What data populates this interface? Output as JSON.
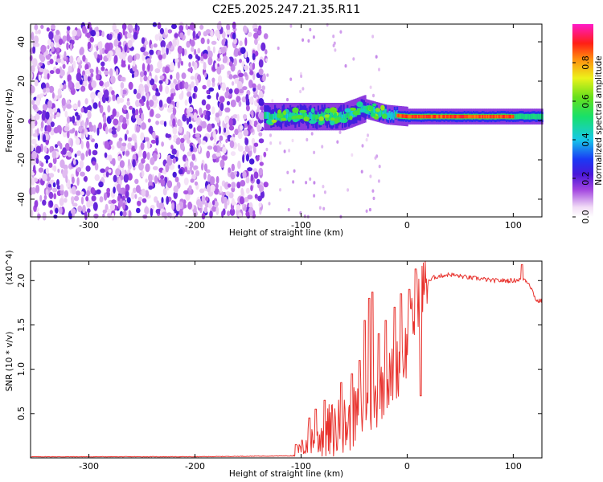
{
  "title": "C2E5.2025.247.21.35.R11",
  "chart_data": [
    {
      "type": "heatmap",
      "title": "C2E5.2025.247.21.35.R11",
      "xlabel": "Height of straight line (km)",
      "ylabel": "Frequency (Hz)",
      "xlim": [
        -355,
        127
      ],
      "ylim": [
        -49,
        49
      ],
      "xticks": [
        -300,
        -200,
        -100,
        0,
        100
      ],
      "yticks": [
        -40,
        -20,
        0,
        20,
        40
      ],
      "colorbar": {
        "label": "Normalized spectral amplitude",
        "range": [
          0,
          1
        ],
        "ticks": [
          0.0,
          0.2,
          0.4,
          0.6,
          0.8
        ],
        "colormap": "rainbow (magenta-violet-blue-cyan-green-yellow-red-magenta)"
      },
      "features": {
        "noise_region_end_km": -133,
        "signal_start_km": -135,
        "signal_center_freq_hz": [
          [
            -130,
            2
          ],
          [
            -100,
            2
          ],
          [
            -60,
            2
          ],
          [
            -40,
            6
          ],
          [
            -20,
            3
          ],
          [
            0,
            2
          ],
          [
            50,
            2
          ],
          [
            100,
            2
          ],
          [
            127,
            2
          ]
        ],
        "strongest_band_km": [
          -10,
          100
        ]
      }
    },
    {
      "type": "line",
      "xlabel": "Height of straight line (km)",
      "ylabel": "SNR (10 * v/v)",
      "y_multiplier": "(x10^4)",
      "xlim": [
        -355,
        127
      ],
      "ylim": [
        0,
        2.22
      ],
      "xticks": [
        -300,
        -200,
        -100,
        0,
        100
      ],
      "yticks": [
        0.5,
        1.0,
        1.5,
        2.0
      ],
      "series": [
        {
          "name": "SNR",
          "color": "#e8312c",
          "x": [
            -355,
            -300,
            -200,
            -110,
            -100,
            -90,
            -80,
            -70,
            -60,
            -50,
            -40,
            -35,
            -30,
            -25,
            -20,
            -15,
            -10,
            -5,
            0,
            5,
            10,
            15,
            20,
            30,
            40,
            50,
            60,
            70,
            80,
            90,
            100,
            110,
            115,
            122,
            127
          ],
          "y": [
            0.01,
            0.01,
            0.01,
            0.02,
            0.1,
            0.22,
            0.25,
            0.3,
            0.35,
            0.45,
            0.55,
            0.6,
            0.65,
            0.75,
            0.85,
            0.9,
            1.0,
            1.1,
            1.25,
            1.5,
            1.8,
            1.95,
            2.02,
            2.05,
            2.07,
            2.05,
            2.03,
            2.02,
            2.0,
            2.0,
            2.0,
            2.02,
            1.97,
            1.77,
            1.77
          ],
          "spikes": [
            [
              -105,
              0.15
            ],
            [
              -92,
              0.45
            ],
            [
              -86,
              0.55
            ],
            [
              -78,
              0.65
            ],
            [
              -62,
              0.85
            ],
            [
              -52,
              0.95
            ],
            [
              -45,
              1.1
            ],
            [
              -40,
              1.55
            ],
            [
              -36,
              1.8
            ],
            [
              -33,
              1.87
            ],
            [
              -27,
              1.4
            ],
            [
              -20,
              1.55
            ],
            [
              -12,
              1.7
            ],
            [
              -6,
              1.85
            ],
            [
              2,
              1.9
            ],
            [
              8,
              2.13
            ],
            [
              13,
              0.7
            ],
            [
              22,
              2.0
            ],
            [
              108,
              2.18
            ]
          ]
        }
      ]
    }
  ]
}
